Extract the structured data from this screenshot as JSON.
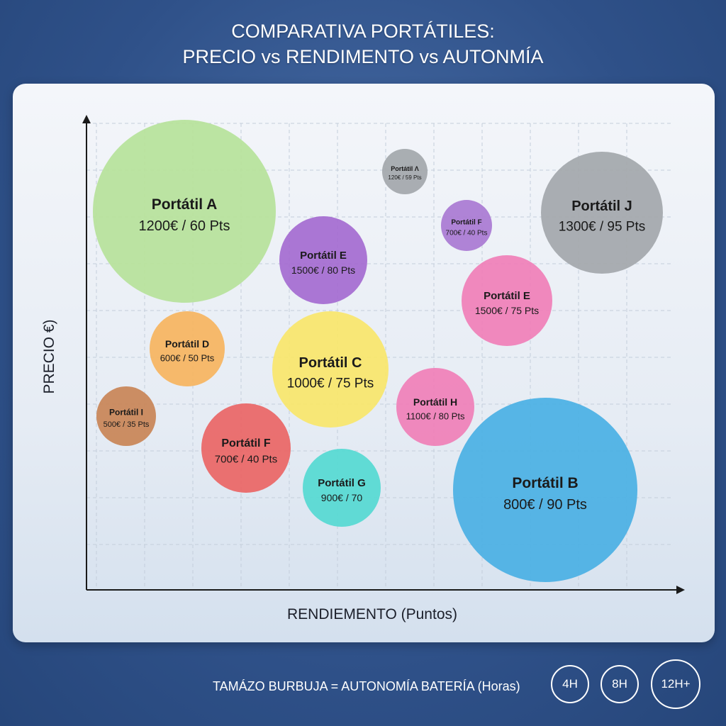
{
  "title": {
    "line1": "COMPARATIVA PORTÁTILES:",
    "line2": "PRECIO vs RENDIMENTO vs AUTONMÍA"
  },
  "chart_data": {
    "type": "scatter",
    "subtype": "bubble",
    "title": "COMPARATIVA PORTÁTILES: PRECIO vs RENDIMENTO vs AUTONMÍA",
    "xlabel": "RENDIEMENTO (Puntos)",
    "ylabel": "PRECIO €)",
    "grid": true,
    "size_legend": {
      "caption": "TAMÁZO BURBUJA = AUTONOMÍA BATERÍA (Horas)",
      "keys": [
        "4H",
        "8H",
        "12H+"
      ]
    },
    "points": [
      {
        "name": "Portátil A",
        "label": "1200€ / 60 Pts",
        "precio": 1200,
        "rendimiento": 60,
        "color": "#b6e29a"
      },
      {
        "name": "Portátil Λ",
        "label": "120€ / 59 Pts",
        "precio": 120,
        "rendimiento": 59,
        "color": "#a3a7ab"
      },
      {
        "name": "Portátil J",
        "label": "1300€ / 95 Pts",
        "precio": 1300,
        "rendimiento": 95,
        "color": "#a3a7ab"
      },
      {
        "name": "Portátil F",
        "label": "700€ / 40 Pts",
        "precio": 700,
        "rendimiento": 40,
        "color": "#a97ad3"
      },
      {
        "name": "Portátil E",
        "label": "1500€ / 80 Pts",
        "precio": 1500,
        "rendimiento": 80,
        "color": "#a46bd0"
      },
      {
        "name": "Portátil E",
        "label": "1500€ / 75 Pts",
        "precio": 1500,
        "rendimiento": 75,
        "color": "#f07fb7"
      },
      {
        "name": "Portátil D",
        "label": "600€ / 50 Pts",
        "precio": 600,
        "rendimiento": 50,
        "color": "#f6b45e"
      },
      {
        "name": "Portátil C",
        "label": "1000€ / 75 Pts",
        "precio": 1000,
        "rendimiento": 75,
        "color": "#f9e66a"
      },
      {
        "name": "Portátil H",
        "label": "1100€ / 80 Pts",
        "precio": 1100,
        "rendimiento": 80,
        "color": "#f07fb7"
      },
      {
        "name": "Portátil I",
        "label": "500€ / 35 Pts",
        "precio": 500,
        "rendimiento": 35,
        "color": "#c98456"
      },
      {
        "name": "Portátil F",
        "label": "700€ / 40 Pts",
        "precio": 700,
        "rendimiento": 40,
        "color": "#ea6565"
      },
      {
        "name": "Portátil G",
        "label": "900€ / 70",
        "precio": 900,
        "rendimiento": 70,
        "color": "#55d9d2"
      },
      {
        "name": "Portátil B",
        "label": "800€ / 90 Pts",
        "precio": 800,
        "rendimiento": 90,
        "color": "#4ab0e4"
      }
    ]
  }
}
